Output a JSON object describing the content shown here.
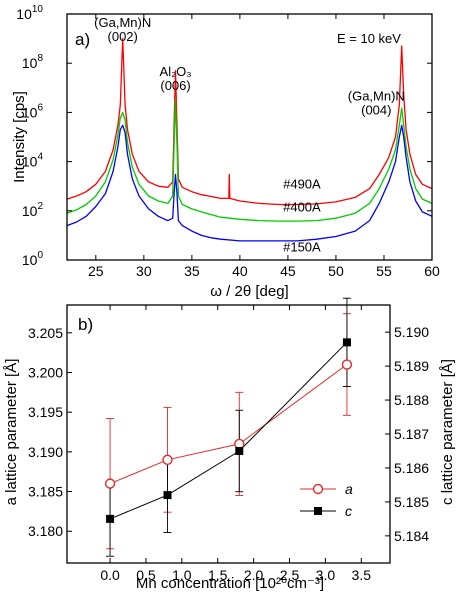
{
  "chart_data": [
    {
      "type": "line",
      "panel_label": "a)",
      "xlabel": "ω / 2θ [deg]",
      "ylabel": "Intensity [cps]",
      "xlim": [
        22,
        60
      ],
      "ylim": [
        1,
        10000000000
      ],
      "y_scale": "log",
      "x_ticks": [
        25,
        30,
        35,
        40,
        45,
        50,
        55,
        60
      ],
      "y_ticks": [
        {
          "value": 1,
          "base": "10",
          "exp": "0"
        },
        {
          "value": 100,
          "base": "10",
          "exp": "2"
        },
        {
          "value": 10000,
          "base": "10",
          "exp": "4"
        },
        {
          "value": 1000000,
          "base": "10",
          "exp": "6"
        },
        {
          "value": 100000000,
          "base": "10",
          "exp": "8"
        },
        {
          "value": 10000000000,
          "base": "10",
          "exp": "10"
        }
      ],
      "energy_label": "E = 10 keV",
      "peak_labels": [
        {
          "line1": "(Ga,Mn)N",
          "line2": "(002)",
          "x": 27.8,
          "y": 3000000000
        },
        {
          "line1": "Al₂O₃",
          "line2": "(006)",
          "x": 33.3,
          "y": 30000000
        },
        {
          "line1": "(Ga,Mn)N",
          "line2": "(004)",
          "x": 54.2,
          "y": 3000000
        }
      ],
      "series": [
        {
          "name": "#490A",
          "color": "#ff0000",
          "label_at": [
            44.5,
            800
          ],
          "x": [
            22,
            23,
            24,
            25,
            26,
            26.8,
            27.3,
            27.55,
            27.8,
            28.05,
            28.3,
            28.8,
            29.5,
            30.5,
            31.5,
            32.5,
            33.0,
            33.15,
            33.3,
            33.45,
            33.6,
            34,
            35,
            36,
            37,
            38,
            38.85,
            38.9,
            38.95,
            40,
            42,
            44,
            46,
            48,
            50,
            52,
            53.5,
            54.5,
            55.5,
            56.2,
            56.6,
            56.85,
            57.05,
            57.3,
            57.7,
            58.3,
            59,
            60
          ],
          "y": [
            300,
            400,
            600,
            1200,
            4000,
            30000,
            300000,
            2000000,
            1000000000,
            2000000,
            200000,
            20000,
            4000,
            1500,
            1000,
            900,
            1500,
            300000,
            50000000,
            300000,
            2000,
            900,
            600,
            450,
            380,
            320,
            320,
            3000,
            320,
            250,
            200,
            180,
            180,
            190,
            230,
            350,
            800,
            3000,
            15000,
            100000,
            2000000,
            500000000,
            5000000,
            200000,
            20000,
            3000,
            1200,
            800
          ]
        },
        {
          "name": "#400A",
          "color": "#00cc00",
          "label_at": [
            44.5,
            95
          ],
          "x": [
            22,
            23,
            24,
            25,
            26,
            26.8,
            27.3,
            27.55,
            27.8,
            28.05,
            28.3,
            28.8,
            29.5,
            30.5,
            31.5,
            32.5,
            33.0,
            33.15,
            33.3,
            33.45,
            33.6,
            34,
            35,
            36,
            37,
            38,
            40,
            42,
            44,
            46,
            48,
            50,
            52,
            53.5,
            54.5,
            55.5,
            56.2,
            56.6,
            56.85,
            57.05,
            57.3,
            57.7,
            58.3,
            59,
            60
          ],
          "y": [
            80,
            110,
            180,
            400,
            1500,
            12000,
            120000,
            600000,
            1000000,
            500000,
            60000,
            6000,
            1200,
            400,
            250,
            200,
            400,
            50000,
            3000000,
            50000,
            400,
            180,
            120,
            90,
            70,
            55,
            45,
            40,
            38,
            38,
            40,
            50,
            80,
            200,
            800,
            5000,
            30000,
            300000,
            1500000,
            300000,
            40000,
            5000,
            800,
            300,
            200
          ]
        },
        {
          "name": "#150A",
          "color": "#0000ff",
          "label_at": [
            44.5,
            2.2
          ],
          "x": [
            22,
            23,
            24,
            25,
            26,
            26.8,
            27.3,
            27.55,
            27.8,
            28.05,
            28.3,
            28.8,
            29.5,
            30.5,
            31.5,
            32.5,
            33.0,
            33.15,
            33.3,
            33.45,
            33.6,
            34,
            35,
            36,
            37,
            38,
            40,
            42,
            44,
            46,
            48,
            50,
            52,
            53.5,
            54.5,
            55.5,
            56.2,
            56.6,
            56.85,
            57.05,
            57.3,
            57.7,
            58.3,
            59,
            60
          ],
          "y": [
            25,
            35,
            60,
            150,
            500,
            4000,
            40000,
            200000,
            300000,
            150000,
            20000,
            2000,
            400,
            120,
            60,
            40,
            50,
            500,
            3000,
            500,
            40,
            25,
            15,
            10,
            8,
            7,
            6,
            6,
            6,
            6,
            7,
            9,
            15,
            40,
            200,
            1500,
            10000,
            100000,
            300000,
            100000,
            15000,
            1500,
            250,
            90,
            60
          ]
        }
      ]
    },
    {
      "type": "scatter",
      "panel_label": "b)",
      "xlabel": "Mn concentration [10²⁰cm⁻³]",
      "ylabel_left": "a lattice parameter [Å]",
      "ylabel_right": "c lattice parameter [Å]",
      "xlim": [
        -0.6,
        3.9
      ],
      "x_ticks": [
        0.0,
        0.5,
        1.0,
        1.5,
        2.0,
        2.5,
        3.0,
        3.5
      ],
      "ylim_left": [
        3.176,
        3.2085
      ],
      "y_ticks_left": [
        3.18,
        3.185,
        3.19,
        3.195,
        3.2,
        3.205
      ],
      "ylim_right": [
        5.1832,
        5.1908
      ],
      "y_ticks_right": [
        5.184,
        5.185,
        5.186,
        5.187,
        5.188,
        5.189,
        5.19
      ],
      "series": [
        {
          "name": "a",
          "axis": "left",
          "color": "#e32a2a",
          "marker": "open-circle",
          "x": [
            0.0,
            0.8,
            1.8,
            3.3
          ],
          "y": [
            3.186,
            3.189,
            3.191,
            3.201
          ],
          "err": [
            0.0082,
            0.0066,
            0.0065,
            0.0064
          ]
        },
        {
          "name": "c",
          "axis": "right",
          "color": "#000000",
          "marker": "filled-square",
          "x": [
            0.0,
            0.8,
            1.8,
            3.3
          ],
          "y": [
            5.1845,
            5.1852,
            5.1865,
            5.1897
          ],
          "err": [
            0.0011,
            0.0011,
            0.0012,
            0.0013
          ]
        }
      ]
    }
  ]
}
